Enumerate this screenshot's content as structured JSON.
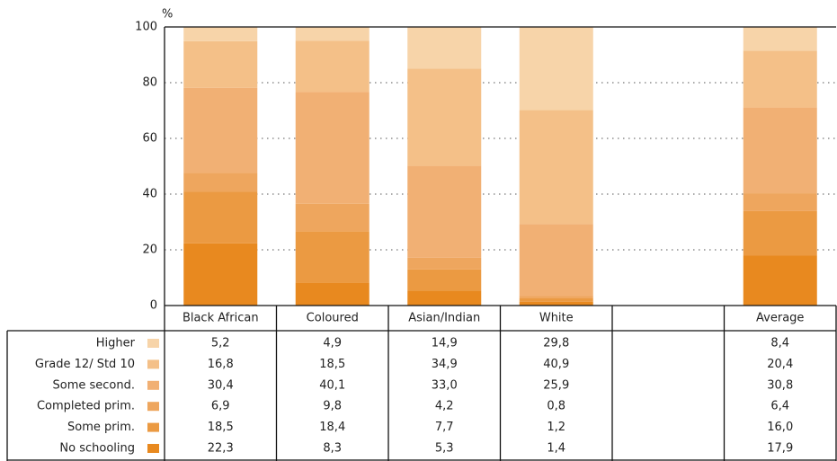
{
  "chart_data": {
    "type": "stacked_bar",
    "ylabel": "%",
    "categories": [
      "Black African",
      "Coloured",
      "Asian/Indian",
      "White",
      null,
      "Average"
    ],
    "ylim": [
      0,
      100
    ],
    "yticks": [
      0,
      20,
      40,
      60,
      80,
      100
    ],
    "grid": true,
    "series": [
      {
        "name": "No schooling",
        "color": "#e8891f",
        "values": [
          22.3,
          8.3,
          5.3,
          1.4,
          null,
          17.9
        ],
        "value_labels": [
          "22,3",
          "8,3",
          "5,3",
          "1,4",
          null,
          "17,9"
        ]
      },
      {
        "name": "Some prim.",
        "color": "#eb9a42",
        "values": [
          18.5,
          18.4,
          7.7,
          1.2,
          null,
          16.0
        ],
        "value_labels": [
          "18,5",
          "18,4",
          "7,7",
          "1,2",
          null,
          "16,0"
        ]
      },
      {
        "name": "Completed prim.",
        "color": "#eea65e",
        "values": [
          6.9,
          9.8,
          4.2,
          0.8,
          null,
          6.4
        ],
        "value_labels": [
          "6,9",
          "9,8",
          "4,2",
          "0,8",
          null,
          "6,4"
        ]
      },
      {
        "name": "Some second.",
        "color": "#f1b074",
        "values": [
          30.4,
          40.1,
          33.0,
          25.9,
          null,
          30.8
        ],
        "value_labels": [
          "30,4",
          "40,1",
          "33,0",
          "25,9",
          null,
          "30,8"
        ]
      },
      {
        "name": "Grade 12/ Std 10",
        "color": "#f4c088",
        "values": [
          16.8,
          18.5,
          34.9,
          40.9,
          null,
          20.4
        ],
        "value_labels": [
          "16,8",
          "18,5",
          "34,9",
          "40,9",
          null,
          "20,4"
        ]
      },
      {
        "name": "Higher",
        "color": "#f7d4a9",
        "values": [
          5.2,
          4.9,
          14.9,
          29.8,
          null,
          8.4
        ],
        "value_labels": [
          "5,2",
          "4,9",
          "14,9",
          "29,8",
          null,
          "8,4"
        ]
      }
    ]
  }
}
